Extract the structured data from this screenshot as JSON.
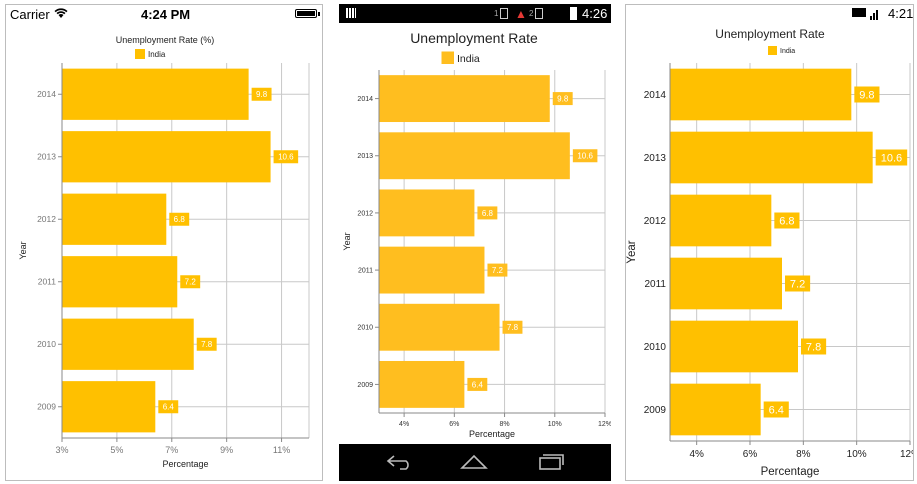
{
  "ios": {
    "carrier": "Carrier",
    "time": "4:24 PM",
    "icons": [
      "wifi-icon",
      "battery-icon"
    ]
  },
  "android": {
    "status_numbers": [
      "1",
      "2"
    ],
    "time": "4:26",
    "icons": [
      "sim-icon",
      "signal-icon",
      "alert-icon",
      "battery-charging-icon"
    ],
    "nav_icons": [
      "back-icon",
      "home-icon",
      "recent-apps-icon"
    ]
  },
  "windows": {
    "time": "4:21",
    "icons": [
      "battery-charging-icon",
      "signal-icon"
    ]
  },
  "colors": {
    "bar": "#FFC000",
    "bar_android": "#FFBE1F",
    "gridline": "#C8C8C8",
    "axis": "#8A8A8A"
  },
  "chart_data": [
    {
      "type": "bar",
      "orientation": "horizontal",
      "title": "Unemployment Rate (%)",
      "legend": "top",
      "categories": [
        "2009",
        "2010",
        "2011",
        "2012",
        "2013",
        "2014"
      ],
      "series": [
        {
          "name": "India",
          "values": [
            6.4,
            7.8,
            7.2,
            6.8,
            10.6,
            9.8
          ]
        }
      ],
      "data_labels": [
        "6.4",
        "7.8",
        "7.2",
        "6.8",
        "10.6",
        "9.8"
      ],
      "xlabel": "Percentage",
      "ylabel": "Year",
      "xlim": [
        3,
        12
      ],
      "x_ticks": [
        "3%",
        "5%",
        "7%",
        "9%",
        "11%"
      ],
      "x_tick_values": [
        3,
        5,
        7,
        9,
        11
      ],
      "grid": true
    },
    {
      "type": "bar",
      "orientation": "horizontal",
      "title": "Unemployment Rate",
      "legend": "top",
      "categories": [
        "2009",
        "2010",
        "2011",
        "2012",
        "2013",
        "2014"
      ],
      "series": [
        {
          "name": "India",
          "values": [
            6.4,
            7.8,
            7.2,
            6.8,
            10.6,
            9.8
          ]
        }
      ],
      "data_labels": [
        "6.4",
        "7.8",
        "7.2",
        "6.8",
        "10.6",
        "9.8"
      ],
      "xlabel": "Percentage",
      "ylabel": "Year",
      "xlim": [
        3,
        12
      ],
      "x_ticks": [
        "4%",
        "6%",
        "8%",
        "10%",
        "12%"
      ],
      "x_tick_values": [
        4,
        6,
        8,
        10,
        12
      ],
      "grid": true
    },
    {
      "type": "bar",
      "orientation": "horizontal",
      "title": "Unemployment Rate",
      "legend": "top",
      "categories": [
        "2009",
        "2010",
        "2011",
        "2012",
        "2013",
        "2014"
      ],
      "series": [
        {
          "name": "India",
          "values": [
            6.4,
            7.8,
            7.2,
            6.8,
            10.6,
            9.8
          ]
        }
      ],
      "data_labels": [
        "6.4",
        "7.8",
        "7.2",
        "6.8",
        "10.6",
        "9.8"
      ],
      "xlabel": "Percentage",
      "ylabel": "Year",
      "xlim": [
        3,
        12
      ],
      "x_ticks": [
        "4%",
        "6%",
        "8%",
        "10%",
        "12%"
      ],
      "x_tick_values": [
        4,
        6,
        8,
        10,
        12
      ],
      "grid": true
    }
  ]
}
